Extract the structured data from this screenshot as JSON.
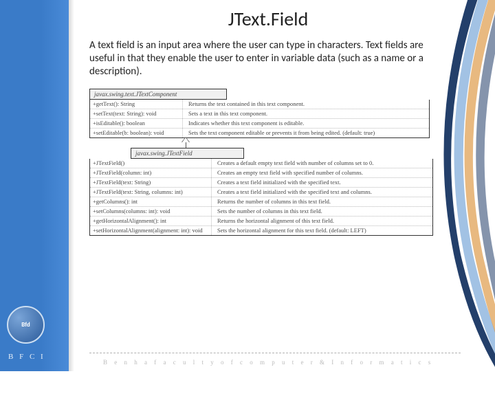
{
  "title": "JText.Field",
  "intro": "A text field is an input area where the user can type in characters. Text fields are useful in that they enable the user to enter in variable data (such as a name or a description).",
  "parent": {
    "header": "javax.swing.text.JTextComponent",
    "rows": [
      {
        "op": "+getText(): String",
        "desc": "Returns the text contained in this text component."
      },
      {
        "op": "+setText(text: String): void",
        "desc": "Sets a text in this text component."
      },
      {
        "op": "+isEditable(): boolean",
        "desc": "Indicates whether this text component is editable."
      },
      {
        "op": "+setEditable(b: boolean): void",
        "desc": "Sets the text component editable or prevents it from being edited. (default: true)"
      }
    ]
  },
  "child": {
    "header": "javax.swing.JTextField",
    "rows": [
      {
        "op": "+JTextField()",
        "desc": "Creates a default empty text field with number of columns set to 0."
      },
      {
        "op": "+JTextField(column: int)",
        "desc": "Creates an empty text field with specified number of columns."
      },
      {
        "op": "+JTextField(text: String)",
        "desc": "Creates a text field initialized with the specified text."
      },
      {
        "op": "+JTextField(text: String, columns: int)",
        "desc": "Creates a text field initialized with the specified text and columns."
      },
      {
        "op": "+getColumns(): int",
        "desc": "Returns the number of columns in this text field."
      },
      {
        "op": "+setColumns(columns: int): void",
        "desc": "Sets the number of columns in this text field."
      },
      {
        "op": "+getHorizontalAlignment(): int",
        "desc": "Returns the horizontal alignment of this text field."
      },
      {
        "op": "+setHorizontalAlignment(alignment: int): void",
        "desc": "Sets the horizontal alignment for this text field. (default: LEFT)"
      }
    ]
  },
  "footer": "B e n h a   f a c u l t y   o f   c o m p u t e r   &   I n f o r m a t i c s",
  "bfci": "B F C I",
  "colors": {
    "left_bar": "#3a7bc8",
    "swoosh_dark": "#0b2a5a",
    "swoosh_mid": "#7aa8d8",
    "swoosh_accent": "#d98a2b"
  }
}
